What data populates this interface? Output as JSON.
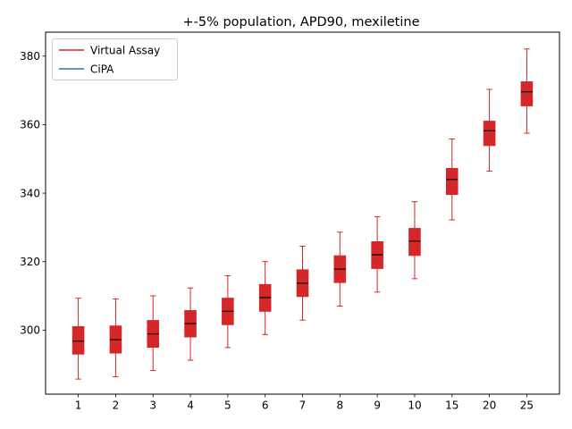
{
  "chart_data": {
    "type": "box",
    "title": "+-5% population, APD90, mexiletine",
    "xlabel": "",
    "ylabel": "",
    "categories": [
      "1",
      "2",
      "3",
      "4",
      "5",
      "6",
      "7",
      "8",
      "9",
      "10",
      "15",
      "20",
      "25"
    ],
    "ylim": [
      281.3,
      387.0
    ],
    "yticks": [
      300,
      320,
      340,
      360,
      380
    ],
    "grid": false,
    "legend": {
      "placement": "top-left",
      "entries": [
        {
          "label": "Virtual Assay",
          "color": "#d62728"
        },
        {
          "label": "CiPA",
          "color": "#1f77b4"
        }
      ]
    },
    "series": [
      {
        "name": "Virtual Assay",
        "color": "#d62728",
        "boxes": [
          {
            "whisker_low": 285.7,
            "q1": 293.0,
            "median": 296.8,
            "q3": 301.0,
            "whisker_high": 309.3
          },
          {
            "whisker_low": 286.4,
            "q1": 293.3,
            "median": 297.2,
            "q3": 301.2,
            "whisker_high": 309.1
          },
          {
            "whisker_low": 288.2,
            "q1": 295.0,
            "median": 298.9,
            "q3": 302.8,
            "whisker_high": 310.0
          },
          {
            "whisker_low": 291.2,
            "q1": 298.0,
            "median": 301.9,
            "q3": 305.7,
            "whisker_high": 312.3
          },
          {
            "whisker_low": 294.9,
            "q1": 301.6,
            "median": 305.5,
            "q3": 309.3,
            "whisker_high": 315.9
          },
          {
            "whisker_low": 298.7,
            "q1": 305.5,
            "median": 309.5,
            "q3": 313.3,
            "whisker_high": 320.0
          },
          {
            "whisker_low": 302.9,
            "q1": 309.8,
            "median": 313.7,
            "q3": 317.6,
            "whisker_high": 324.5
          },
          {
            "whisker_low": 307.0,
            "q1": 313.9,
            "median": 317.8,
            "q3": 321.7,
            "whisker_high": 328.6
          },
          {
            "whisker_low": 311.1,
            "q1": 318.0,
            "median": 322.0,
            "q3": 325.8,
            "whisker_high": 333.1
          },
          {
            "whisker_low": 315.0,
            "q1": 321.8,
            "median": 326.0,
            "q3": 329.7,
            "whisker_high": 337.5
          },
          {
            "whisker_low": 332.2,
            "q1": 339.6,
            "median": 344.0,
            "q3": 347.2,
            "whisker_high": 355.8
          },
          {
            "whisker_low": 346.4,
            "q1": 353.9,
            "median": 358.2,
            "q3": 361.0,
            "whisker_high": 370.3
          },
          {
            "whisker_low": 357.5,
            "q1": 365.5,
            "median": 369.6,
            "q3": 372.5,
            "whisker_high": 382.1
          }
        ]
      },
      {
        "name": "CiPA",
        "color": "#1f77b4",
        "boxes": []
      }
    ]
  }
}
